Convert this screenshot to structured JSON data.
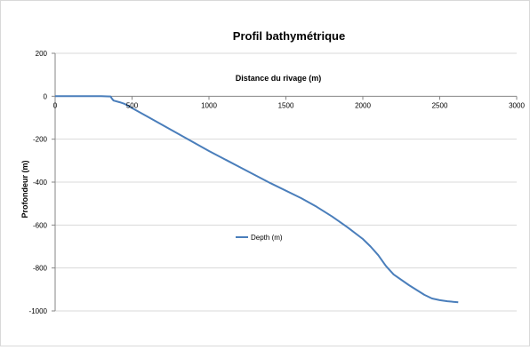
{
  "chart_data": {
    "type": "line",
    "title": "Profil bathymétrique",
    "xlabel": "Distance du rivage (m)",
    "ylabel": "Profondeur (m)",
    "xlim": [
      0,
      3000
    ],
    "ylim": [
      -1000,
      200
    ],
    "xticks": [
      0,
      500,
      1000,
      1500,
      2000,
      2500,
      3000
    ],
    "yticks": [
      200,
      0,
      -200,
      -400,
      -600,
      -800,
      -1000
    ],
    "grid": true,
    "legend_position": "center-left",
    "series": [
      {
        "name": "Depth (m)",
        "color": "#4a7ebb",
        "x": [
          0,
          100,
          200,
          300,
          360,
          370,
          380,
          420,
          450,
          500,
          600,
          800,
          1000,
          1200,
          1400,
          1600,
          1700,
          1800,
          1900,
          2000,
          2050,
          2100,
          2150,
          2200,
          2300,
          2400,
          2450,
          2500,
          2550,
          2620
        ],
        "y": [
          0,
          0,
          0,
          0,
          -1,
          -12,
          -20,
          -28,
          -35,
          -55,
          -95,
          -175,
          -255,
          -330,
          -405,
          -475,
          -515,
          -560,
          -610,
          -665,
          -700,
          -740,
          -790,
          -830,
          -880,
          -925,
          -942,
          -950,
          -955,
          -960
        ]
      }
    ]
  }
}
